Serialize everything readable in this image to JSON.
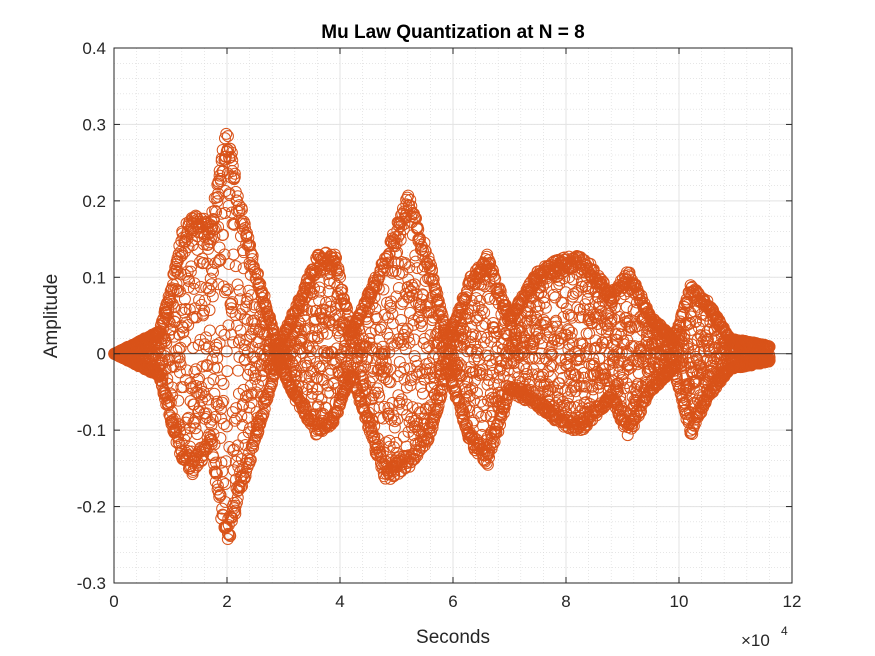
{
  "chart_data": {
    "type": "scatter",
    "title": "Mu Law Quantization at N = 8",
    "xlabel": "Seconds",
    "ylabel": "Amplitude",
    "xlim": [
      0,
      12
    ],
    "ylim": [
      -0.3,
      0.4
    ],
    "x_exponent_label": "×10",
    "x_exponent_power": "4",
    "x_ticks": [
      0,
      2,
      4,
      6,
      8,
      10,
      12
    ],
    "y_ticks": [
      -0.3,
      -0.2,
      -0.1,
      0,
      0.1,
      0.2,
      0.3,
      0.4
    ],
    "x_tick_labels": [
      "0",
      "2",
      "4",
      "6",
      "8",
      "10",
      "12"
    ],
    "y_tick_labels": [
      "-0.3",
      "-0.2",
      "-0.1",
      "0",
      "0.1",
      "0.2",
      "0.3",
      "0.4"
    ],
    "grid": true,
    "minor_grid": true,
    "marker": "circle",
    "series": [
      {
        "color": "#D95319",
        "x": [
          0.4,
          0.8,
          1.0,
          1.2,
          1.4,
          1.7,
          2.0,
          2.2,
          2.45,
          2.9,
          3.2,
          3.6,
          3.9,
          4.2,
          4.8,
          5.2,
          5.6,
          5.9,
          6.3,
          6.6,
          7.0,
          7.5,
          8.0,
          8.3,
          8.8,
          9.1,
          9.5,
          9.9,
          10.2,
          10.5,
          10.9,
          11.3,
          11.6
        ],
        "upper_env": [
          0.015,
          0.03,
          0.09,
          0.16,
          0.19,
          0.17,
          0.31,
          0.21,
          0.13,
          0.01,
          0.06,
          0.13,
          0.135,
          0.03,
          0.13,
          0.21,
          0.12,
          0.02,
          0.1,
          0.13,
          0.05,
          0.11,
          0.13,
          0.13,
          0.08,
          0.11,
          0.05,
          0.02,
          0.09,
          0.07,
          0.02,
          0.015,
          0.01
        ],
        "lower_env": [
          -0.015,
          -0.03,
          -0.09,
          -0.14,
          -0.16,
          -0.12,
          -0.27,
          -0.19,
          -0.13,
          -0.01,
          -0.06,
          -0.11,
          -0.09,
          -0.03,
          -0.17,
          -0.15,
          -0.11,
          -0.02,
          -0.12,
          -0.15,
          -0.05,
          -0.07,
          -0.1,
          -0.1,
          -0.06,
          -0.11,
          -0.05,
          -0.02,
          -0.11,
          -0.06,
          -0.02,
          -0.015,
          -0.01
        ]
      }
    ]
  }
}
